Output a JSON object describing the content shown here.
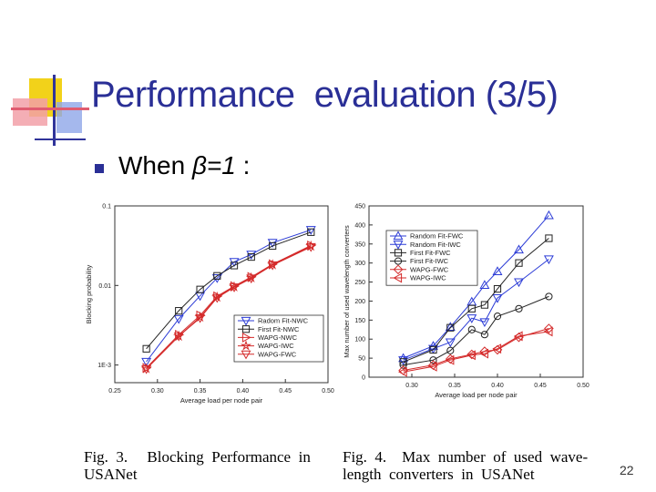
{
  "slide": {
    "title": "Performance  evaluation (3/5)",
    "bullet_prefix": "When ",
    "bullet_beta": "β=1",
    "bullet_suffix": " :",
    "page_number": "22",
    "caption3_line1": "Fig.  3.     Blocking  Performance  in",
    "caption3_line2": "USANet",
    "caption4_line1": "Fig.  4.    Max  number  of  used  wave-",
    "caption4_line2": "length  converters  in  USANet"
  },
  "colors": {
    "title": "#2a2f96",
    "blue": "#2b3bd6",
    "red": "#d42a2a",
    "black": "#222222"
  },
  "chart_data": [
    {
      "type": "line",
      "ylog": true,
      "xlabel": "Average load per node pair",
      "ylabel": "Blocking probability",
      "xlim": [
        0.25,
        0.5
      ],
      "ylim": [
        0.0006,
        0.1
      ],
      "xticks": [
        0.25,
        0.3,
        0.35,
        0.4,
        0.45,
        0.5
      ],
      "xtick_labels": [
        "0.25",
        "0.30",
        "0.35",
        "0.40",
        "0.45",
        "0.50"
      ],
      "yticks": [
        0.001,
        0.01,
        0.1
      ],
      "ytick_labels": [
        "1E-3",
        "0.01",
        "0.1"
      ],
      "legend_position": "bottom-right",
      "x": [
        0.287,
        0.325,
        0.35,
        0.37,
        0.39,
        0.41,
        0.435,
        0.48
      ],
      "series": [
        {
          "name": "Radom Fit-NWC",
          "color": "#2b3bd6",
          "marker": "tri-down",
          "values": [
            0.0011,
            0.0038,
            0.0074,
            0.0124,
            0.0198,
            0.0245,
            0.0345,
            0.05
          ]
        },
        {
          "name": "First Fit-NWC",
          "color": "#222222",
          "marker": "square",
          "values": [
            0.0016,
            0.0048,
            0.0089,
            0.0132,
            0.0178,
            0.0228,
            0.0314,
            0.0468
          ]
        },
        {
          "name": "WAPG-NWC",
          "color": "#d42a2a",
          "marker": "tri-right",
          "values": [
            0.00092,
            0.0024,
            0.0042,
            0.0073,
            0.0098,
            0.0128,
            0.0185,
            0.0318
          ]
        },
        {
          "name": "WAPG-IWC",
          "color": "#d42a2a",
          "marker": "star",
          "values": [
            0.0009,
            0.0023,
            0.004,
            0.0071,
            0.0096,
            0.0125,
            0.0182,
            0.0312
          ]
        },
        {
          "name": "WAPG-FWC",
          "color": "#d42a2a",
          "marker": "tri-down",
          "values": [
            0.00089,
            0.0023,
            0.0039,
            0.007,
            0.0095,
            0.0123,
            0.018,
            0.0305
          ]
        }
      ]
    },
    {
      "type": "line",
      "xlabel": "Average load per node pair",
      "ylabel": "Max number of used wavelength converters",
      "xlim": [
        0.25,
        0.5
      ],
      "ylim": [
        0,
        450
      ],
      "xticks": [
        0.3,
        0.35,
        0.4,
        0.45,
        0.5
      ],
      "xtick_labels": [
        "0.30",
        "0.35",
        "0.40",
        "0.45",
        "0.50"
      ],
      "yticks": [
        0,
        50,
        100,
        150,
        200,
        250,
        300,
        350,
        400,
        450
      ],
      "ytick_labels": [
        "0",
        "50",
        "100",
        "150",
        "200",
        "250",
        "300",
        "350",
        "400",
        "450"
      ],
      "legend_position": "top-left",
      "x": [
        0.29,
        0.325,
        0.345,
        0.37,
        0.385,
        0.4,
        0.425,
        0.46
      ],
      "series": [
        {
          "name": "Random Fit-FWC",
          "color": "#2b3bd6",
          "marker": "tri-up",
          "values": [
            50,
            82,
            132,
            198,
            242,
            278,
            335,
            425
          ]
        },
        {
          "name": "Random Fit-IWC",
          "color": "#2b3bd6",
          "marker": "tri-down",
          "values": [
            45,
            75,
            92,
            155,
            145,
            208,
            250,
            310
          ]
        },
        {
          "name": "First Fit-FWC",
          "color": "#222222",
          "marker": "square",
          "values": [
            40,
            72,
            130,
            180,
            190,
            232,
            300,
            365
          ]
        },
        {
          "name": "First Fit-IWC",
          "color": "#222222",
          "marker": "circle",
          "values": [
            32,
            45,
            70,
            125,
            112,
            160,
            180,
            212
          ]
        },
        {
          "name": "WAPG-FWC",
          "color": "#d42a2a",
          "marker": "diamond",
          "values": [
            18,
            32,
            48,
            60,
            68,
            72,
            105,
            128
          ]
        },
        {
          "name": "WAPG-IWC",
          "color": "#d42a2a",
          "marker": "tri-left",
          "values": [
            14,
            28,
            45,
            58,
            62,
            75,
            108,
            120
          ]
        }
      ]
    }
  ]
}
